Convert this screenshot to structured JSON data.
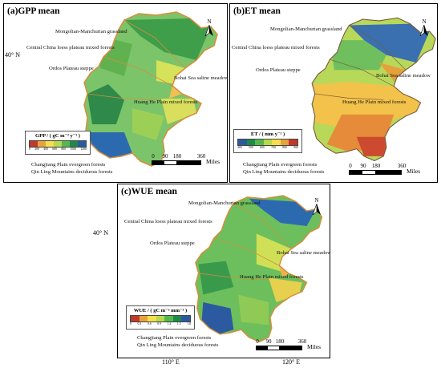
{
  "panels": {
    "gpp": {
      "title": "(a)GPP mean",
      "legend_title": "GPP / ( gC m⁻² y⁻¹ )",
      "legend_ticks": [
        "0",
        "200",
        "400",
        "600",
        "800",
        "1000",
        "1200"
      ],
      "legend_colors": [
        "#c0392b",
        "#e9a23b",
        "#f4e04d",
        "#b7d94c",
        "#55b84e",
        "#1e8a4a",
        "#2c5aa0"
      ]
    },
    "et": {
      "title": "(b)ET mean",
      "legend_title": "ET / ( mm y⁻¹ )",
      "legend_ticks": [
        "400",
        "500",
        "600",
        "700",
        "800",
        "900"
      ],
      "legend_colors": [
        "#2c5aa0",
        "#1e8a4a",
        "#55b84e",
        "#b7d94c",
        "#f4e04d",
        "#e9a23b",
        "#c0392b"
      ]
    },
    "wue": {
      "title": "(c)WUE mean",
      "legend_title": "WUE / ( gC m⁻² mm⁻¹ )",
      "legend_ticks": [
        "0",
        "0.3",
        "0.6",
        "0.9",
        "1.2",
        "1.5",
        "1.8"
      ],
      "legend_colors": [
        "#c0392b",
        "#e9a23b",
        "#f4e04d",
        "#b7d94c",
        "#55b84e",
        "#1e8a4a",
        "#2c5aa0"
      ]
    }
  },
  "regions": {
    "mongolian": "Mongolian-Manchurian grassland",
    "loess": "Central China loess plateau mixed forests",
    "ordos": "Ordos Plateau steppe",
    "bohai": "Bohai Sea saline meadow",
    "huanghe": "Huang He Plain mixed forests",
    "changjiang": "Changjiang Plain evergreen forests",
    "qinling": "Qin Ling Mountains deciduous forests"
  },
  "north_label": "N",
  "scale": {
    "ticks": [
      "0",
      "90",
      "180",
      "360"
    ],
    "unit": "Miles"
  },
  "coords": {
    "lat40": "40° N",
    "lon110": "110° E",
    "lon120": "120° E"
  }
}
